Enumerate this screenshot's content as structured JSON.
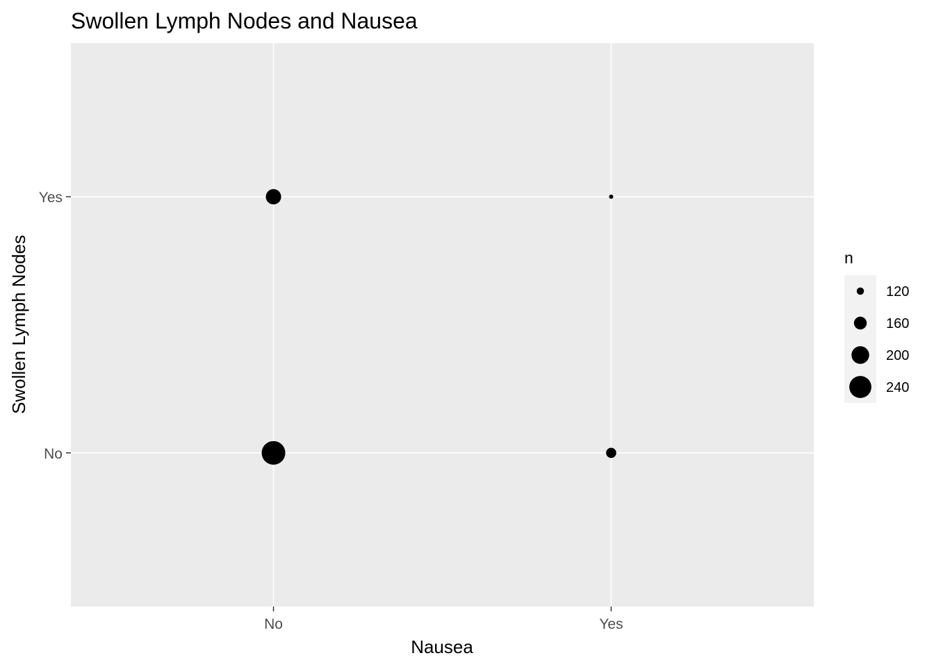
{
  "chart_data": {
    "type": "scatter",
    "title": "Swollen Lymph Nodes and Nausea",
    "xlabel": "Nausea",
    "ylabel": "Swollen Lymph Nodes",
    "x_categories": [
      "No",
      "Yes"
    ],
    "y_categories": [
      "No",
      "Yes"
    ],
    "points": [
      {
        "x": "No",
        "y": "No",
        "n": 255
      },
      {
        "x": "No",
        "y": "Yes",
        "n": 180
      },
      {
        "x": "Yes",
        "y": "No",
        "n": 140
      },
      {
        "x": "Yes",
        "y": "Yes",
        "n": 100
      }
    ],
    "size_legend": {
      "title": "n",
      "breaks": [
        120,
        160,
        200,
        240
      ]
    },
    "grid": true,
    "legend_position": "right",
    "colors": {
      "panel_background": "#EBEBEB",
      "grid": "#FFFFFF",
      "point": "#000000",
      "legend_key_background": "#F2F2F2"
    }
  }
}
